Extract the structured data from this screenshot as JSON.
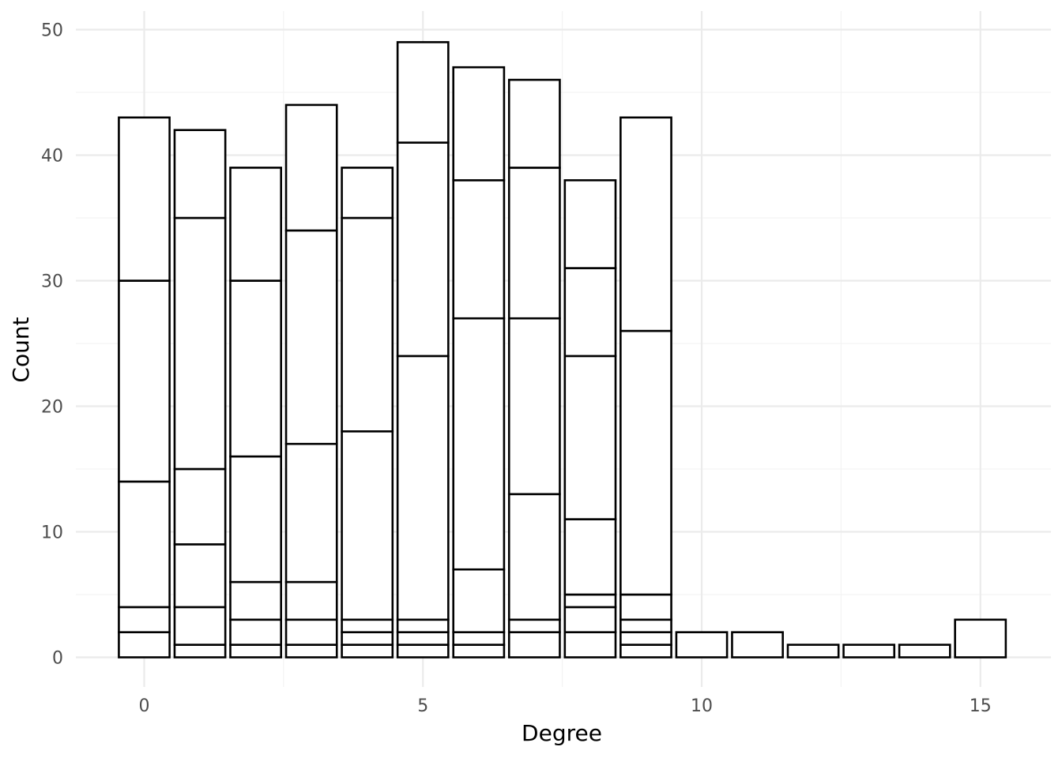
{
  "chart_data": {
    "type": "bar",
    "subtype": "stacked-histogram",
    "title": "",
    "xlabel": "Degree",
    "ylabel": "Count",
    "xlim": [
      -0.5,
      15.5
    ],
    "ylim": [
      0,
      50
    ],
    "x_ticks": [
      0,
      5,
      10,
      15
    ],
    "y_ticks": [
      0,
      10,
      20,
      30,
      40,
      50
    ],
    "grid": true,
    "legend": "none",
    "colors": {
      "fill": "#ffffff",
      "outline": "#000000",
      "grid": "#ebebeb"
    },
    "bars": [
      {
        "x": 0,
        "boundaries": [
          0,
          2,
          4,
          14,
          30,
          43
        ]
      },
      {
        "x": 1,
        "boundaries": [
          0,
          1,
          4,
          9,
          15,
          35,
          42
        ]
      },
      {
        "x": 2,
        "boundaries": [
          0,
          1,
          3,
          6,
          16,
          30,
          39
        ]
      },
      {
        "x": 3,
        "boundaries": [
          0,
          1,
          3,
          6,
          17,
          34,
          44
        ]
      },
      {
        "x": 4,
        "boundaries": [
          0,
          1,
          2,
          3,
          18,
          35,
          39
        ]
      },
      {
        "x": 5,
        "boundaries": [
          0,
          1,
          2,
          3,
          24,
          41,
          49
        ]
      },
      {
        "x": 6,
        "boundaries": [
          0,
          1,
          2,
          7,
          27,
          38,
          47
        ]
      },
      {
        "x": 7,
        "boundaries": [
          0,
          2,
          3,
          13,
          27,
          39,
          46
        ]
      },
      {
        "x": 8,
        "boundaries": [
          0,
          2,
          4,
          5,
          11,
          24,
          31,
          38
        ]
      },
      {
        "x": 9,
        "boundaries": [
          0,
          1,
          2,
          3,
          5,
          26,
          43
        ]
      },
      {
        "x": 10,
        "boundaries": [
          0,
          2
        ]
      },
      {
        "x": 11,
        "boundaries": [
          0,
          2
        ]
      },
      {
        "x": 12,
        "boundaries": [
          0,
          1
        ]
      },
      {
        "x": 13,
        "boundaries": [
          0,
          1
        ]
      },
      {
        "x": 14,
        "boundaries": [
          0,
          1
        ]
      },
      {
        "x": 15,
        "boundaries": [
          0,
          3
        ]
      }
    ]
  }
}
